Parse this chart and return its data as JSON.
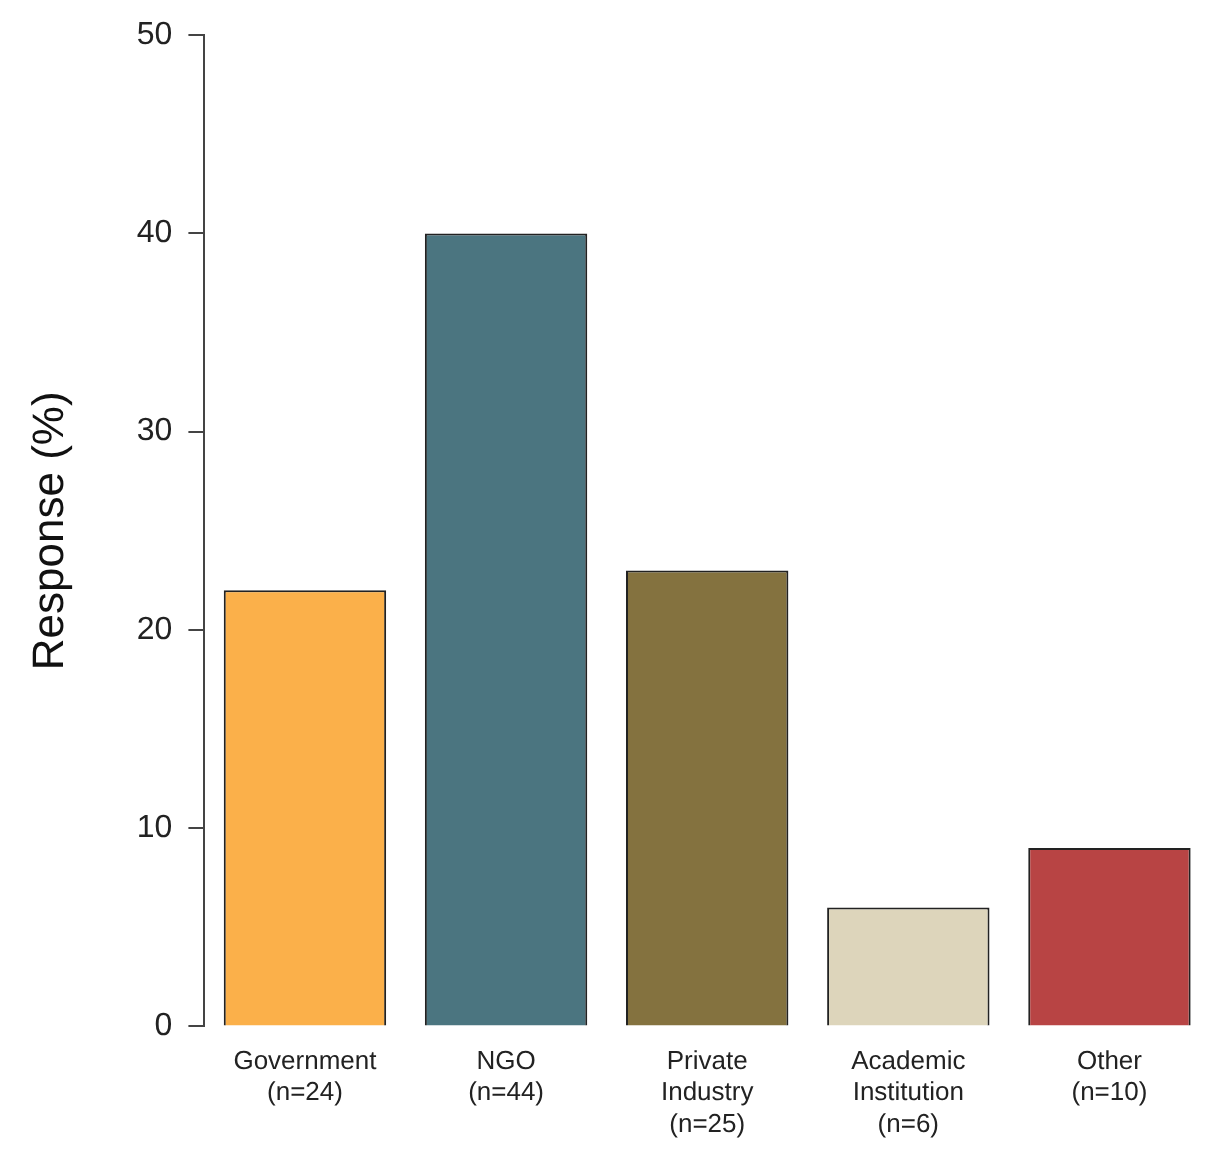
{
  "chart_data": {
    "type": "bar",
    "ylabel": "Response (%)",
    "categories": [
      "Government\n(n=24)",
      "NGO\n(n=44)",
      "Private\nIndustry\n(n=25)",
      "Academic\nInstitution\n(n=6)",
      "Other\n(n=10)"
    ],
    "values": [
      22,
      40,
      23,
      6,
      9
    ],
    "colors": [
      "#fbb04a",
      "#4b7580",
      "#84723f",
      "#ddd5bb",
      "#b84444"
    ],
    "ylim": [
      0,
      50
    ],
    "yticks": [
      0,
      10,
      20,
      30,
      40,
      50
    ],
    "grid": false,
    "legend": false
  }
}
